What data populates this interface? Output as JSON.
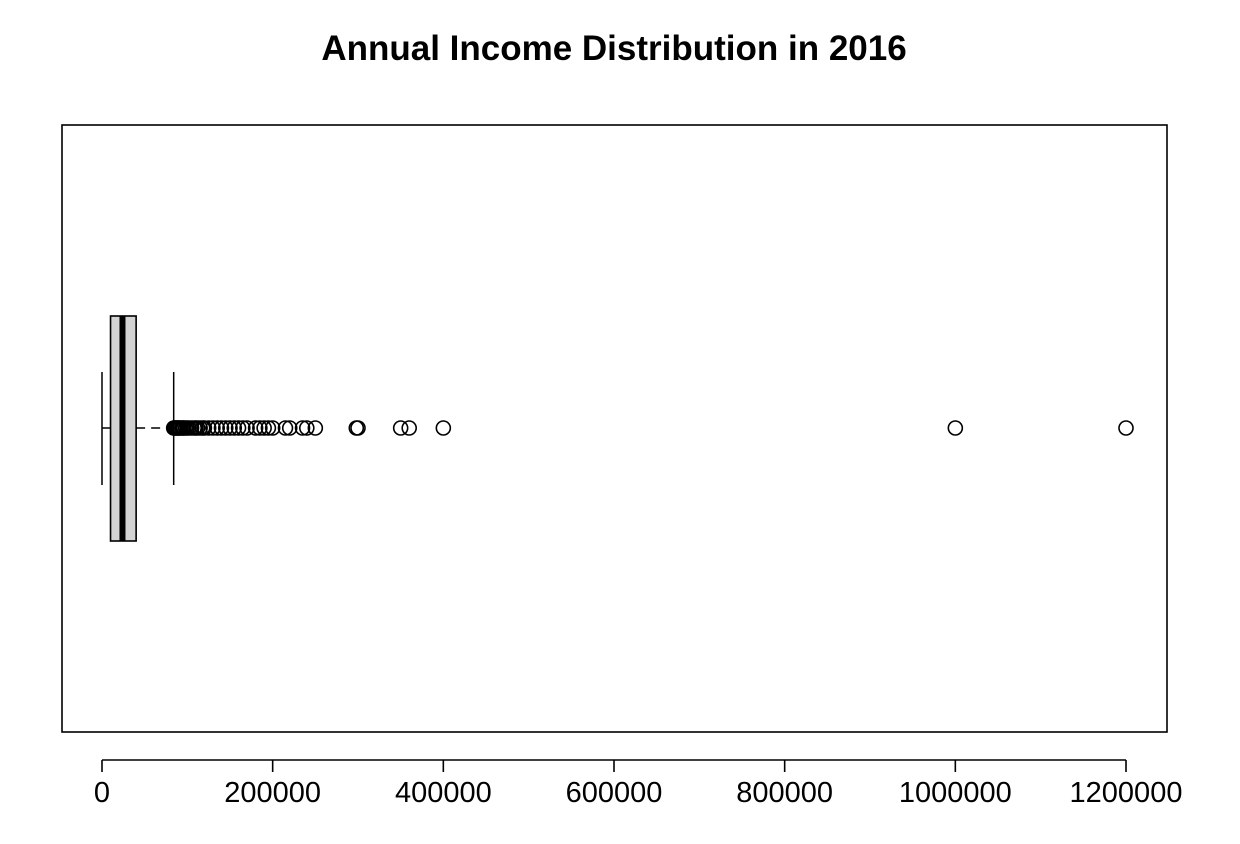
{
  "chart_data": {
    "type": "boxplot",
    "orientation": "horizontal",
    "title": "Annual Income Distribution in 2016",
    "xlabel": "",
    "ylabel": "",
    "xlim": [
      0,
      1200000
    ],
    "x_ticks": [
      0,
      200000,
      400000,
      600000,
      800000,
      1000000,
      1200000
    ],
    "x_tick_labels": [
      "0",
      "200000",
      "400000",
      "600000",
      "800000",
      "1000000",
      "1200000"
    ],
    "box": {
      "whisker_low": 0,
      "q1": 10000,
      "median": 24000,
      "q3": 40000,
      "whisker_high": 84000
    },
    "outliers": [
      84000,
      85000,
      86000,
      87000,
      88000,
      89000,
      90000,
      91000,
      92000,
      94000,
      95000,
      96000,
      98000,
      100000,
      102000,
      105000,
      108000,
      110000,
      112000,
      115000,
      118000,
      120000,
      125000,
      130000,
      135000,
      140000,
      145000,
      150000,
      155000,
      160000,
      165000,
      170000,
      180000,
      185000,
      190000,
      195000,
      200000,
      215000,
      220000,
      235000,
      240000,
      250000,
      298000,
      300000,
      350000,
      360000,
      400000,
      1000000,
      1200000
    ],
    "colors": {
      "box_fill": "#d3d3d3",
      "stroke": "#000000"
    },
    "grid": false
  }
}
